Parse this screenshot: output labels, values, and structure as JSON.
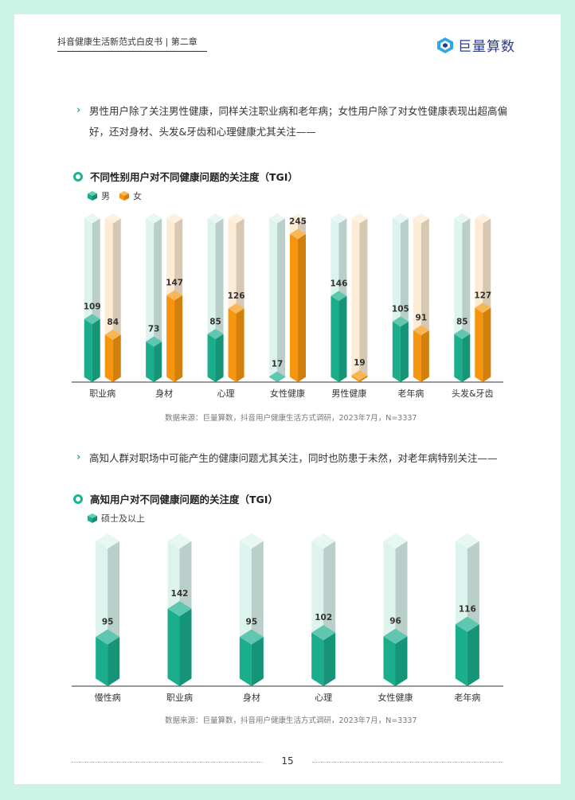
{
  "header": {
    "title": "抖音健康生活新范式白皮书 | 第二章",
    "logo_text": "巨量算数"
  },
  "insight1": {
    "line1": "男性用户除了关注男性健康，同样关注职业病和老年病；女性用户除了对女性健康表现出超高偏",
    "line2": "好，还对身材、头发&牙齿和心理健康尤其关注——"
  },
  "insight2": {
    "line1": "高知人群对职场中可能产生的健康问题尤其关注，同时也防患于未然，对老年病特别关注——"
  },
  "chart1_title": "不同性别用户对不同健康问题的关注度（TGI）",
  "chart2_title": "高知用户对不同健康问题的关注度（TGI）",
  "chart1_source": "数据来源：巨量算数，抖音用户健康生活方式调研，2023年7月，N=3337",
  "chart2_source": "数据来源：巨量算数，抖音用户健康生活方式调研，2023年7月，N=3337",
  "page_number": "15",
  "colors": {
    "male": "#1aae8c",
    "female": "#f7960e",
    "male_track": "#dcf3ee",
    "female_track": "#fdebd3",
    "accent": "#19b493"
  },
  "chart_data": [
    {
      "type": "bar",
      "title": "不同性别用户对不同健康问题的关注度（TGI）",
      "categories": [
        "职业病",
        "身材",
        "心理",
        "女性健康",
        "男性健康",
        "老年病",
        "头发&牙齿"
      ],
      "series": [
        {
          "name": "男",
          "values": [
            109,
            73,
            85,
            17,
            146,
            105,
            85
          ]
        },
        {
          "name": "女",
          "values": [
            84,
            147,
            126,
            245,
            19,
            91,
            127
          ]
        }
      ],
      "ylim": [
        0,
        270
      ],
      "legend": "top-left"
    },
    {
      "type": "bar",
      "title": "高知用户对不同健康问题的关注度（TGI）",
      "categories": [
        "慢性病",
        "职业病",
        "身材",
        "心理",
        "女性健康",
        "老年病"
      ],
      "series": [
        {
          "name": "硕士及以上",
          "values": [
            95,
            142,
            95,
            102,
            96,
            116
          ]
        }
      ],
      "ylim": [
        0,
        255
      ],
      "legend": "top-left"
    }
  ]
}
